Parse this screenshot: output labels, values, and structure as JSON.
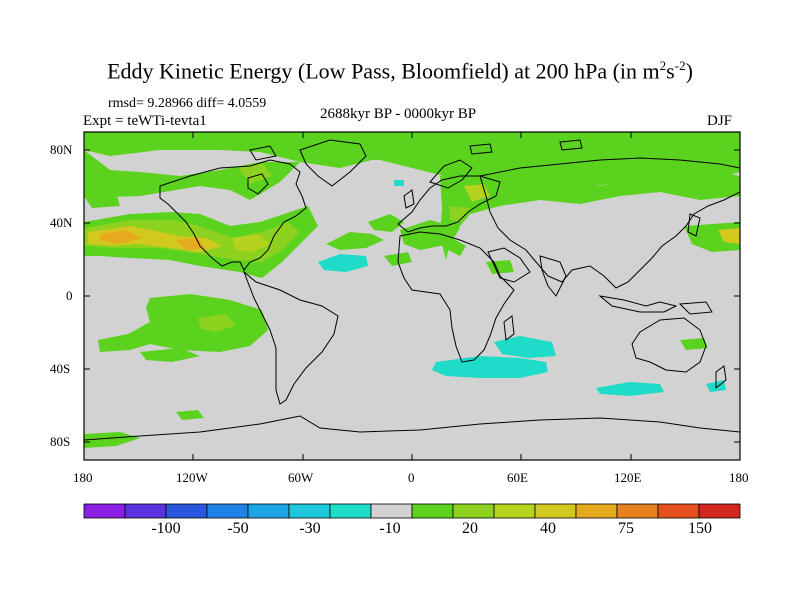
{
  "title": {
    "main": "Eddy Kinetic Energy (Low Pass, Bloomfield) at 200 hPa (in m",
    "sup1": "2",
    "mid": "s",
    "sup2": "-2",
    "end": ")"
  },
  "stats": "rmsd= 9.28966 diff= 4.0559",
  "experiment": "Expt = teWTi-tevta1",
  "period": "2688kyr BP - 0000kyr BP",
  "season": "DJF",
  "axes": {
    "lat_ticks": [
      "80N",
      "40N",
      "0",
      "40S",
      "80S"
    ],
    "lon_ticks": [
      "180",
      "120W",
      "60W",
      "0",
      "60E",
      "120E",
      "180"
    ]
  },
  "colorbar": {
    "colors": [
      "#8c1fe6",
      "#5a32e0",
      "#2a56e0",
      "#1e82e6",
      "#1ea5e6",
      "#1ec8dc",
      "#1edcc8",
      "#d2d2d2",
      "#5ad21e",
      "#8cd21e",
      "#b4d21e",
      "#d2c81e",
      "#e6aa1e",
      "#e6821e",
      "#e6501e",
      "#d2281e"
    ],
    "labels": [
      "-100",
      "-50",
      "-30",
      "-10",
      "20",
      "40",
      "75",
      "150"
    ]
  },
  "colors": {
    "land_bg": "#d2d2d2",
    "green": "#5ad21e",
    "lightgreen": "#8cd21e",
    "yellow": "#d2c81e",
    "orange": "#e6aa1e",
    "cyan": "#1edcc8"
  }
}
